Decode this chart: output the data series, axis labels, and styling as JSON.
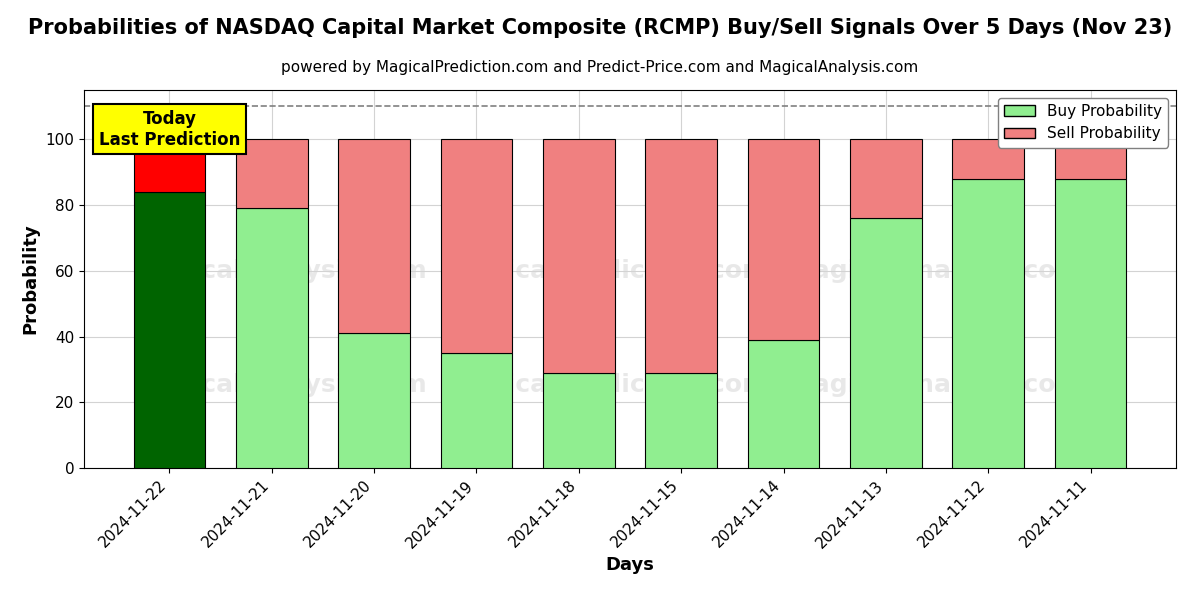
{
  "title": "Probabilities of NASDAQ Capital Market Composite (RCMP) Buy/Sell Signals Over 5 Days (Nov 23)",
  "subtitle": "powered by MagicalPrediction.com and Predict-Price.com and MagicalAnalysis.com",
  "xlabel": "Days",
  "ylabel": "Probability",
  "dates": [
    "2024-11-22",
    "2024-11-21",
    "2024-11-20",
    "2024-11-19",
    "2024-11-18",
    "2024-11-15",
    "2024-11-14",
    "2024-11-13",
    "2024-11-12",
    "2024-11-11"
  ],
  "buy_values": [
    84,
    79,
    41,
    35,
    29,
    29,
    39,
    76,
    88,
    88
  ],
  "sell_values": [
    16,
    21,
    59,
    65,
    71,
    71,
    61,
    24,
    12,
    12
  ],
  "today_bar_buy_color": "#006400",
  "today_bar_sell_color": "#FF0000",
  "normal_buy_color": "#90EE90",
  "normal_sell_color": "#F08080",
  "today_annotation_bg": "#FFFF00",
  "today_annotation_text": "Today\nLast Prediction",
  "dashed_line_y": 110,
  "ylim": [
    0,
    115
  ],
  "yticks": [
    0,
    20,
    40,
    60,
    80,
    100
  ],
  "legend_buy_label": "Buy Probability",
  "legend_sell_label": "Sell Probability",
  "title_fontsize": 15,
  "subtitle_fontsize": 11,
  "axis_label_fontsize": 13,
  "tick_fontsize": 11
}
